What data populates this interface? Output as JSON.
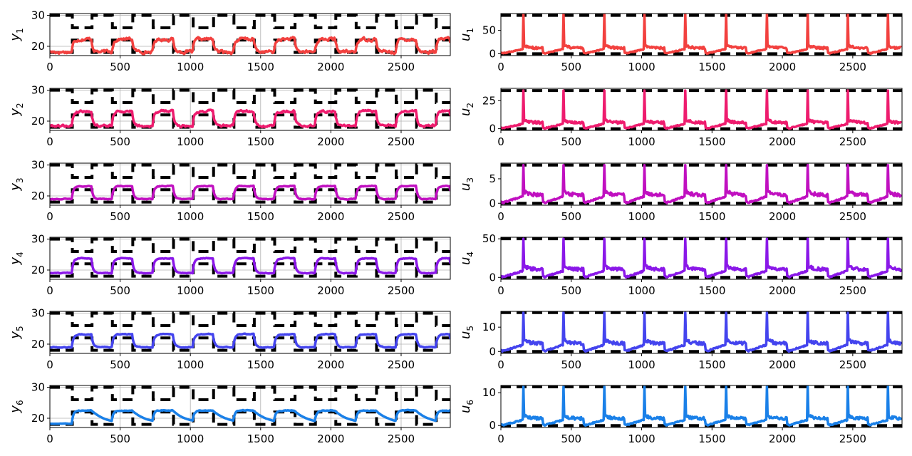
{
  "chart_data": [
    {
      "type": "line",
      "ylabel": "y",
      "ylabel_sub": "1",
      "color": "#f2413f",
      "xlim": [
        0,
        2850
      ],
      "ylim": [
        17,
        30.6
      ],
      "xticks": [
        0,
        500,
        1000,
        1500,
        2000,
        2500
      ],
      "yticks": [
        20,
        30
      ],
      "grid": true,
      "signal": "y",
      "low": 18.2,
      "high": 22.3,
      "noise": 0.8,
      "series": [
        {
          "values": []
        }
      ]
    },
    {
      "type": "line",
      "ylabel": "u",
      "ylabel_sub": "1",
      "color": "#f2413f",
      "xlim": [
        0,
        2850
      ],
      "ylim": [
        -4,
        86
      ],
      "xticks": [
        0,
        500,
        1000,
        1500,
        2000,
        2500
      ],
      "yticks": [
        0,
        50
      ],
      "grid": false,
      "signal": "u",
      "base": 20,
      "spike": 85,
      "bound_high": 82,
      "bound_low": 0,
      "series": [
        {
          "values": []
        }
      ]
    },
    {
      "type": "line",
      "ylabel": "y",
      "ylabel_sub": "2",
      "color": "#ee1c6e",
      "xlim": [
        0,
        2850
      ],
      "ylim": [
        17,
        30.6
      ],
      "xticks": [
        0,
        500,
        1000,
        1500,
        2000,
        2500
      ],
      "yticks": [
        20,
        30
      ],
      "grid": true,
      "signal": "y",
      "low": 18.5,
      "high": 23.2,
      "noise": 0.6,
      "series": [
        {
          "values": []
        }
      ]
    },
    {
      "type": "line",
      "ylabel": "u",
      "ylabel_sub": "2",
      "color": "#ee1c6e",
      "xlim": [
        0,
        2850
      ],
      "ylim": [
        -1.5,
        36
      ],
      "xticks": [
        0,
        500,
        1000,
        1500,
        2000,
        2500
      ],
      "yticks": [
        0,
        25
      ],
      "grid": false,
      "signal": "u",
      "base": 9,
      "spike": 34,
      "bound_high": 34,
      "bound_low": 0,
      "series": [
        {
          "values": []
        }
      ]
    },
    {
      "type": "line",
      "ylabel": "y",
      "ylabel_sub": "3",
      "color": "#c010c0",
      "xlim": [
        0,
        2850
      ],
      "ylim": [
        17,
        30.6
      ],
      "xticks": [
        0,
        500,
        1000,
        1500,
        2000,
        2500
      ],
      "yticks": [
        20,
        30
      ],
      "grid": true,
      "signal": "y",
      "low": 19,
      "high": 23.2,
      "noise": 0.2,
      "series": [
        {
          "values": []
        }
      ]
    },
    {
      "type": "line",
      "ylabel": "u",
      "ylabel_sub": "3",
      "color": "#c010c0",
      "xlim": [
        0,
        2850
      ],
      "ylim": [
        -0.4,
        8.2
      ],
      "xticks": [
        0,
        500,
        1000,
        1500,
        2000,
        2500
      ],
      "yticks": [
        0,
        5
      ],
      "grid": false,
      "signal": "u",
      "base": 2.8,
      "spike": 7.8,
      "bound_high": 7.8,
      "bound_low": 0,
      "series": [
        {
          "values": []
        }
      ]
    },
    {
      "type": "line",
      "ylabel": "y",
      "ylabel_sub": "4",
      "color": "#8a18e8",
      "xlim": [
        0,
        2850
      ],
      "ylim": [
        17,
        30.6
      ],
      "xticks": [
        0,
        500,
        1000,
        1500,
        2000,
        2500
      ],
      "yticks": [
        20,
        30
      ],
      "grid": true,
      "signal": "y",
      "low": 19,
      "high": 23.8,
      "noise": 0.2,
      "series": [
        {
          "values": []
        }
      ]
    },
    {
      "type": "line",
      "ylabel": "u",
      "ylabel_sub": "4",
      "color": "#8a18e8",
      "xlim": [
        0,
        2850
      ],
      "ylim": [
        -2.5,
        52
      ],
      "xticks": [
        0,
        500,
        1000,
        1500,
        2000,
        2500
      ],
      "yticks": [
        0,
        50
      ],
      "grid": false,
      "signal": "u",
      "base": 17,
      "spike": 50,
      "bound_high": 50,
      "bound_low": 0,
      "series": [
        {
          "values": []
        }
      ]
    },
    {
      "type": "line",
      "ylabel": "y",
      "ylabel_sub": "5",
      "color": "#4444ee",
      "xlim": [
        0,
        2850
      ],
      "ylim": [
        17,
        30.6
      ],
      "xticks": [
        0,
        500,
        1000,
        1500,
        2000,
        2500
      ],
      "yticks": [
        20,
        30
      ],
      "grid": true,
      "signal": "y",
      "low": 19,
      "high": 23.2,
      "noise": 0.2,
      "series": [
        {
          "values": []
        }
      ]
    },
    {
      "type": "line",
      "ylabel": "u",
      "ylabel_sub": "5",
      "color": "#4444ee",
      "xlim": [
        0,
        2850
      ],
      "ylim": [
        -0.8,
        16.5
      ],
      "xticks": [
        0,
        500,
        1000,
        1500,
        2000,
        2500
      ],
      "yticks": [
        0,
        10
      ],
      "grid": false,
      "signal": "u",
      "base": 5.5,
      "spike": 16,
      "bound_high": 16,
      "bound_low": 0,
      "series": [
        {
          "values": []
        }
      ]
    },
    {
      "type": "line",
      "ylabel": "y",
      "ylabel_sub": "6",
      "color": "#1a80e8",
      "xlim": [
        0,
        2850
      ],
      "ylim": [
        17,
        30.6
      ],
      "xticks": [
        0,
        500,
        1000,
        1500,
        2000,
        2500
      ],
      "yticks": [
        20,
        30
      ],
      "grid": true,
      "signal": "y",
      "low": 18.2,
      "high": 22.5,
      "noise": 0.2,
      "series": [
        {
          "values": []
        }
      ]
    },
    {
      "type": "line",
      "ylabel": "u",
      "ylabel_sub": "6",
      "color": "#1a80e8",
      "xlim": [
        0,
        2850
      ],
      "ylim": [
        -0.6,
        12.2
      ],
      "xticks": [
        0,
        500,
        1000,
        1500,
        2000,
        2500
      ],
      "yticks": [
        0,
        10
      ],
      "grid": false,
      "signal": "u",
      "base": 3.5,
      "spike": 11.8,
      "bound_high": 11.8,
      "bound_low": 0,
      "series": [
        {
          "values": []
        }
      ]
    }
  ],
  "constraints": {
    "y_comfort_upper_high": 30,
    "y_comfort_upper_low": 26,
    "y_comfort_lower_high": 22,
    "y_comfort_lower_low": 18,
    "switch_times": [
      0,
      160,
      300,
      445,
      590,
      735,
      880,
      1020,
      1165,
      1310,
      1455,
      1600,
      1745,
      1890,
      2035,
      2180,
      2325,
      2465,
      2610,
      2750,
      2850
    ]
  }
}
